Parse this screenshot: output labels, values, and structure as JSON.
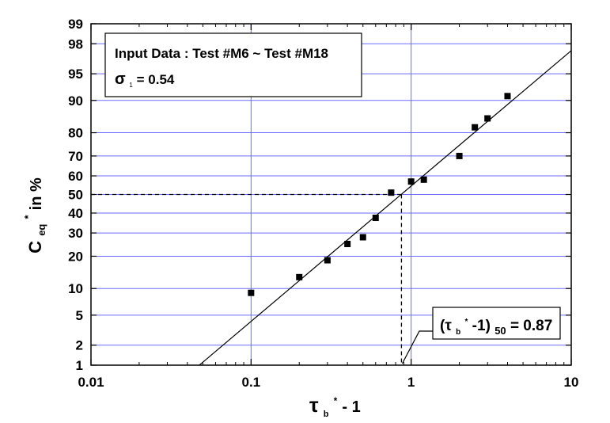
{
  "chart_data": {
    "type": "scatter",
    "x_scale": "log",
    "y_scale": "probability",
    "xlim": [
      0.01,
      10
    ],
    "ylim": [
      1,
      99
    ],
    "grid": true,
    "xticks": [
      0.01,
      0.1,
      1,
      10
    ],
    "xtick_labels": [
      "0.01",
      "0.1",
      "1",
      "10"
    ],
    "yticks": [
      1,
      2,
      5,
      10,
      20,
      30,
      40,
      50,
      60,
      70,
      80,
      90,
      95,
      98,
      99
    ],
    "ytick_labels": [
      "1",
      "2",
      "5",
      "10",
      "20",
      "30",
      "40",
      "50",
      "60",
      "70",
      "80",
      "90",
      "95",
      "98",
      "99"
    ],
    "xlabel": {
      "main": "τ",
      "sub": "b",
      "sup": "*",
      "rest": " - 1"
    },
    "ylabel": {
      "main": "C",
      "sub": "eq",
      "sup": "*",
      "rest": " in %"
    },
    "points": [
      {
        "x": 0.1,
        "y": 9
      },
      {
        "x": 0.2,
        "y": 13
      },
      {
        "x": 0.3,
        "y": 18.5
      },
      {
        "x": 0.4,
        "y": 25
      },
      {
        "x": 0.5,
        "y": 28
      },
      {
        "x": 0.6,
        "y": 37.5
      },
      {
        "x": 0.75,
        "y": 51
      },
      {
        "x": 1.0,
        "y": 57
      },
      {
        "x": 1.2,
        "y": 58
      },
      {
        "x": 2.0,
        "y": 70
      },
      {
        "x": 2.5,
        "y": 82
      },
      {
        "x": 3.0,
        "y": 85
      },
      {
        "x": 4.0,
        "y": 91
      }
    ],
    "fit_line": {
      "x": [
        0.0475,
        10
      ],
      "y": [
        1,
        97.5
      ]
    },
    "reference": {
      "x50": 0.87,
      "y": 50
    },
    "info_box": {
      "line1": "Input Data : Test #M6 ~ Test #M18",
      "sigma_symbol": "σ",
      "sigma_sub": "1",
      "sigma_value": " = 0.54"
    },
    "annotation": {
      "prefix": "(τ",
      "sub_b": "b",
      "sup_star": "*",
      "mid": "-1)",
      "sub_50": "50",
      "value": " = 0.87"
    }
  },
  "colors": {
    "major_grid": "#6b6bff",
    "minor_grid": "#b8b8ff",
    "axis": "#000000",
    "marker": "#000000"
  }
}
